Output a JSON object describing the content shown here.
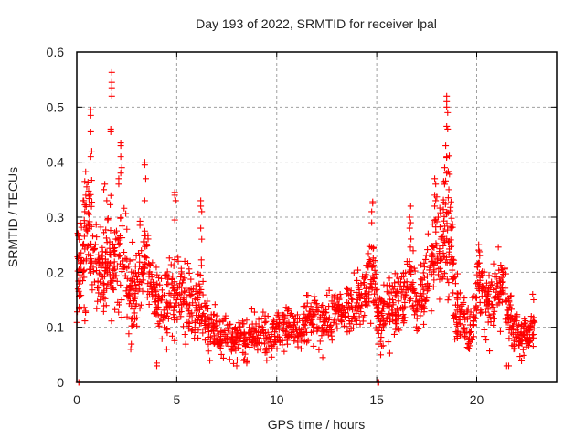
{
  "chart_data": {
    "type": "scatter",
    "title": "Day 193 of 2022, SRMTID for receiver lpal",
    "xlabel": "GPS time / hours",
    "ylabel": "SRMTID / TECUs",
    "xlim": [
      0,
      24
    ],
    "ylim": [
      0,
      0.6
    ],
    "xticks": [
      "0",
      "5",
      "10",
      "15",
      "20"
    ],
    "xtick_values": [
      0,
      5,
      10,
      15,
      20
    ],
    "yticks": [
      "0",
      "0.1",
      "0.2",
      "0.3",
      "0.4",
      "0.5",
      "0.6"
    ],
    "ytick_values": [
      0,
      0.1,
      0.2,
      0.3,
      0.4,
      0.5,
      0.6
    ],
    "grid": true,
    "legend": "none",
    "marker": "plus",
    "series": [
      {
        "name": "SRMTID",
        "color": "#ff0000",
        "profile": [
          [
            0.0,
            0.19,
            0.05
          ],
          [
            0.3,
            0.24,
            0.07
          ],
          [
            0.6,
            0.27,
            0.08
          ],
          [
            0.9,
            0.22,
            0.06
          ],
          [
            1.3,
            0.19,
            0.06
          ],
          [
            1.6,
            0.24,
            0.07
          ],
          [
            1.9,
            0.22,
            0.07
          ],
          [
            2.3,
            0.23,
            0.06
          ],
          [
            2.7,
            0.16,
            0.05
          ],
          [
            3.0,
            0.17,
            0.05
          ],
          [
            3.4,
            0.23,
            0.04
          ],
          [
            3.8,
            0.17,
            0.04
          ],
          [
            4.2,
            0.14,
            0.04
          ],
          [
            4.6,
            0.16,
            0.05
          ],
          [
            5.0,
            0.17,
            0.05
          ],
          [
            5.4,
            0.16,
            0.05
          ],
          [
            5.8,
            0.12,
            0.04
          ],
          [
            6.2,
            0.16,
            0.05
          ],
          [
            6.6,
            0.1,
            0.03
          ],
          [
            7.0,
            0.09,
            0.03
          ],
          [
            7.5,
            0.08,
            0.025
          ],
          [
            8.0,
            0.075,
            0.025
          ],
          [
            8.5,
            0.08,
            0.025
          ],
          [
            9.0,
            0.085,
            0.025
          ],
          [
            9.5,
            0.085,
            0.025
          ],
          [
            10.0,
            0.09,
            0.025
          ],
          [
            10.5,
            0.1,
            0.025
          ],
          [
            11.0,
            0.1,
            0.025
          ],
          [
            11.5,
            0.11,
            0.03
          ],
          [
            12.0,
            0.115,
            0.03
          ],
          [
            12.5,
            0.12,
            0.03
          ],
          [
            13.0,
            0.13,
            0.03
          ],
          [
            13.5,
            0.13,
            0.035
          ],
          [
            14.0,
            0.14,
            0.035
          ],
          [
            14.4,
            0.16,
            0.04
          ],
          [
            14.8,
            0.2,
            0.05
          ],
          [
            15.1,
            0.12,
            0.03
          ],
          [
            15.5,
            0.12,
            0.04
          ],
          [
            15.9,
            0.14,
            0.04
          ],
          [
            16.3,
            0.15,
            0.035
          ],
          [
            16.7,
            0.19,
            0.05
          ],
          [
            17.1,
            0.14,
            0.04
          ],
          [
            17.5,
            0.19,
            0.04
          ],
          [
            17.9,
            0.24,
            0.05
          ],
          [
            18.3,
            0.26,
            0.06
          ],
          [
            18.6,
            0.3,
            0.09
          ],
          [
            18.9,
            0.15,
            0.04
          ],
          [
            19.3,
            0.12,
            0.035
          ],
          [
            19.7,
            0.09,
            0.025
          ],
          [
            20.1,
            0.19,
            0.04
          ],
          [
            20.5,
            0.14,
            0.04
          ],
          [
            20.9,
            0.15,
            0.04
          ],
          [
            21.3,
            0.18,
            0.04
          ],
          [
            21.7,
            0.11,
            0.03
          ],
          [
            22.1,
            0.08,
            0.025
          ],
          [
            22.5,
            0.08,
            0.025
          ],
          [
            22.9,
            0.1,
            0.03
          ]
        ],
        "points": [
          [
            0.1,
            0.0
          ],
          [
            0.15,
            0.0
          ],
          [
            15.05,
            0.0
          ],
          [
            15.1,
            0.0
          ],
          [
            0.7,
            0.495
          ],
          [
            0.7,
            0.485
          ],
          [
            0.7,
            0.455
          ],
          [
            0.75,
            0.42
          ],
          [
            0.7,
            0.41
          ],
          [
            0.4,
            0.365
          ],
          [
            0.5,
            0.355
          ],
          [
            0.45,
            0.34
          ],
          [
            0.35,
            0.33
          ],
          [
            0.4,
            0.31
          ],
          [
            1.75,
            0.563
          ],
          [
            1.75,
            0.545
          ],
          [
            1.75,
            0.535
          ],
          [
            1.75,
            0.52
          ],
          [
            1.7,
            0.46
          ],
          [
            1.7,
            0.455
          ],
          [
            1.4,
            0.36
          ],
          [
            1.35,
            0.35
          ],
          [
            1.5,
            0.33
          ],
          [
            2.2,
            0.435
          ],
          [
            2.2,
            0.43
          ],
          [
            2.2,
            0.41
          ],
          [
            2.25,
            0.39
          ],
          [
            2.2,
            0.38
          ],
          [
            2.1,
            0.37
          ],
          [
            2.1,
            0.36
          ],
          [
            3.4,
            0.4
          ],
          [
            3.4,
            0.395
          ],
          [
            3.45,
            0.37
          ],
          [
            3.4,
            0.33
          ],
          [
            4.9,
            0.345
          ],
          [
            4.9,
            0.34
          ],
          [
            4.95,
            0.33
          ],
          [
            4.9,
            0.295
          ],
          [
            6.2,
            0.33
          ],
          [
            6.2,
            0.32
          ],
          [
            6.25,
            0.31
          ],
          [
            6.2,
            0.28
          ],
          [
            6.25,
            0.26
          ],
          [
            14.8,
            0.328
          ],
          [
            14.8,
            0.325
          ],
          [
            14.75,
            0.31
          ],
          [
            14.75,
            0.29
          ],
          [
            16.7,
            0.32
          ],
          [
            16.65,
            0.3
          ],
          [
            16.7,
            0.29
          ],
          [
            16.65,
            0.28
          ],
          [
            18.5,
            0.52
          ],
          [
            18.5,
            0.51
          ],
          [
            18.5,
            0.5
          ],
          [
            18.55,
            0.49
          ],
          [
            18.5,
            0.465
          ],
          [
            18.55,
            0.46
          ],
          [
            18.45,
            0.43
          ],
          [
            18.5,
            0.41
          ],
          [
            18.4,
            0.39
          ],
          [
            18.5,
            0.38
          ],
          [
            18.35,
            0.365
          ],
          [
            17.9,
            0.37
          ],
          [
            17.95,
            0.36
          ],
          [
            17.9,
            0.34
          ],
          [
            17.95,
            0.33
          ],
          [
            17.9,
            0.32
          ],
          [
            20.1,
            0.25
          ],
          [
            20.1,
            0.24
          ],
          [
            20.15,
            0.23
          ],
          [
            4.0,
            0.035
          ],
          [
            4.0,
            0.03
          ],
          [
            4.5,
            0.06
          ],
          [
            2.7,
            0.06
          ],
          [
            21.5,
            0.03
          ],
          [
            21.6,
            0.03
          ],
          [
            22.8,
            0.16
          ],
          [
            22.85,
            0.15
          ],
          [
            8.0,
            0.03
          ],
          [
            8.5,
            0.035
          ],
          [
            9.5,
            0.04
          ],
          [
            12.3,
            0.045
          ],
          [
            15.2,
            0.05
          ]
        ]
      }
    ]
  }
}
